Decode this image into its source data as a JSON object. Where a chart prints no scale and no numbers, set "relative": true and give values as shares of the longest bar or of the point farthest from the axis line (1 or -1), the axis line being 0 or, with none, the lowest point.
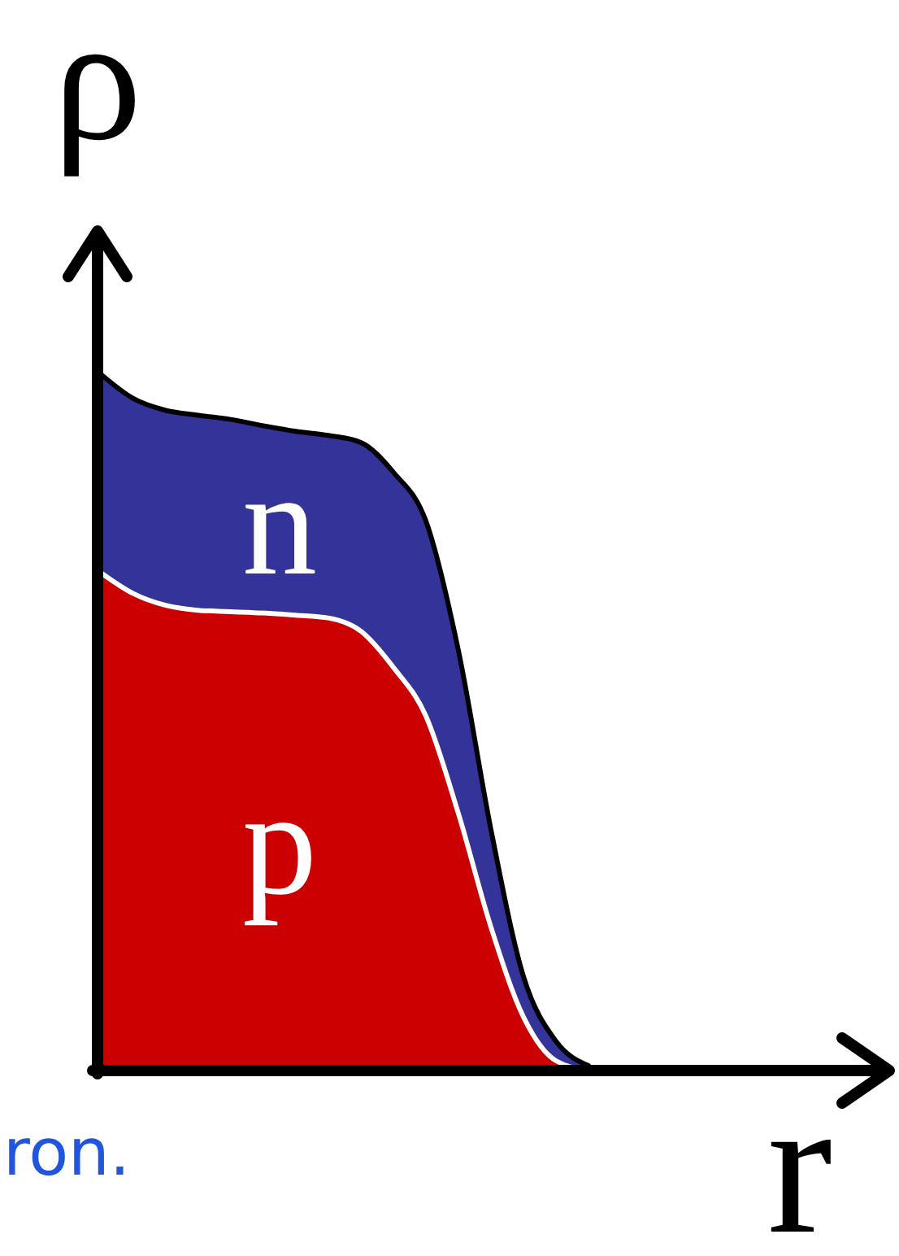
{
  "chart_data": {
    "type": "area",
    "relative": true,
    "stacked": true,
    "xlabel": "r",
    "ylabel": "ρ",
    "categories": [
      null,
      null,
      null,
      null,
      null,
      null,
      null,
      null,
      null,
      null,
      null,
      null,
      null,
      null,
      null,
      null
    ],
    "series": [
      {
        "name": "p",
        "color": "#cc0000",
        "values": [
          0.715,
          0.685,
          0.668,
          0.661,
          0.659,
          0.657,
          0.654,
          0.65,
          0.631,
          0.579,
          0.509,
          0.369,
          0.206,
          0.077,
          0.014,
          0
        ]
      },
      {
        "name": "n",
        "color": "#333399",
        "values": [
          0.285,
          0.28,
          0.28,
          0.28,
          0.276,
          0.269,
          0.264,
          0.262,
          0.271,
          0.28,
          0.28,
          0.234,
          0.14,
          0.058,
          0.028,
          0.007
        ]
      }
    ],
    "annotations": [
      "ron."
    ]
  }
}
